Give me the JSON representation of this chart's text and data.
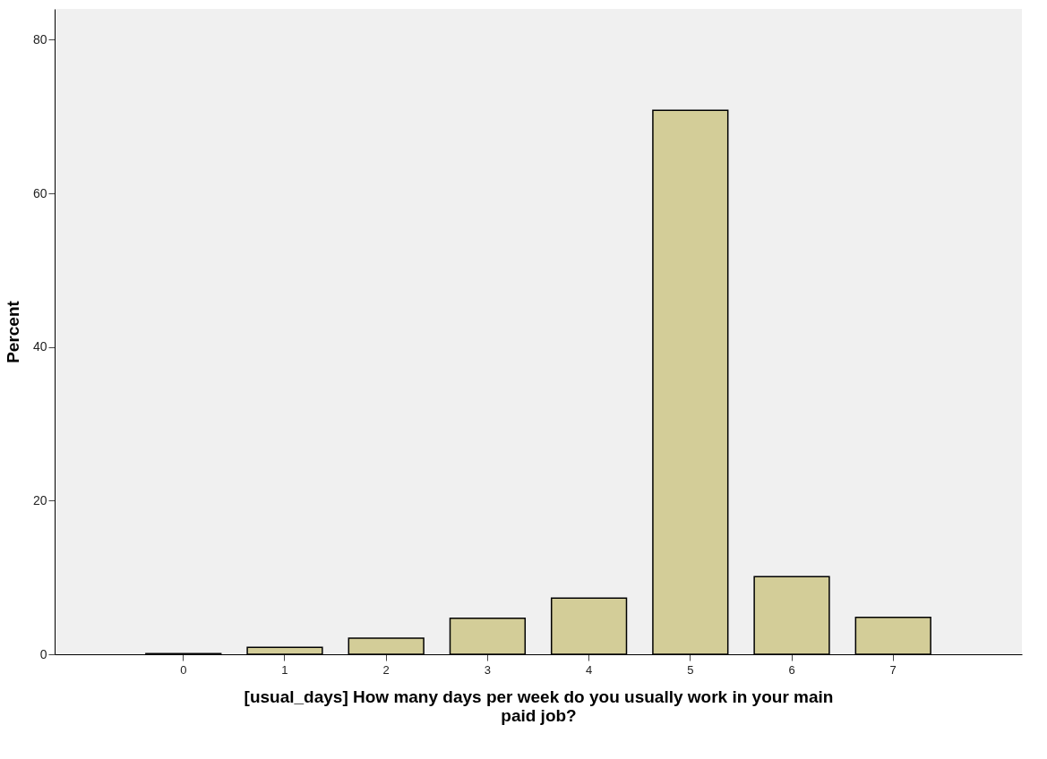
{
  "chart_data": {
    "type": "bar",
    "xlabel": "[usual_days] How many days per week do you usually work in your main paid job?",
    "ylabel": "Percent",
    "categories": [
      "0",
      "1",
      "2",
      "3",
      "4",
      "5",
      "6",
      "7"
    ],
    "values": [
      0.1,
      0.9,
      2.1,
      4.7,
      7.3,
      70.8,
      10.1,
      4.8
    ],
    "color": "#d3cd98",
    "ylim": [
      0,
      84
    ],
    "yticks": [
      0,
      20,
      40,
      60,
      80
    ],
    "grid": false
  }
}
